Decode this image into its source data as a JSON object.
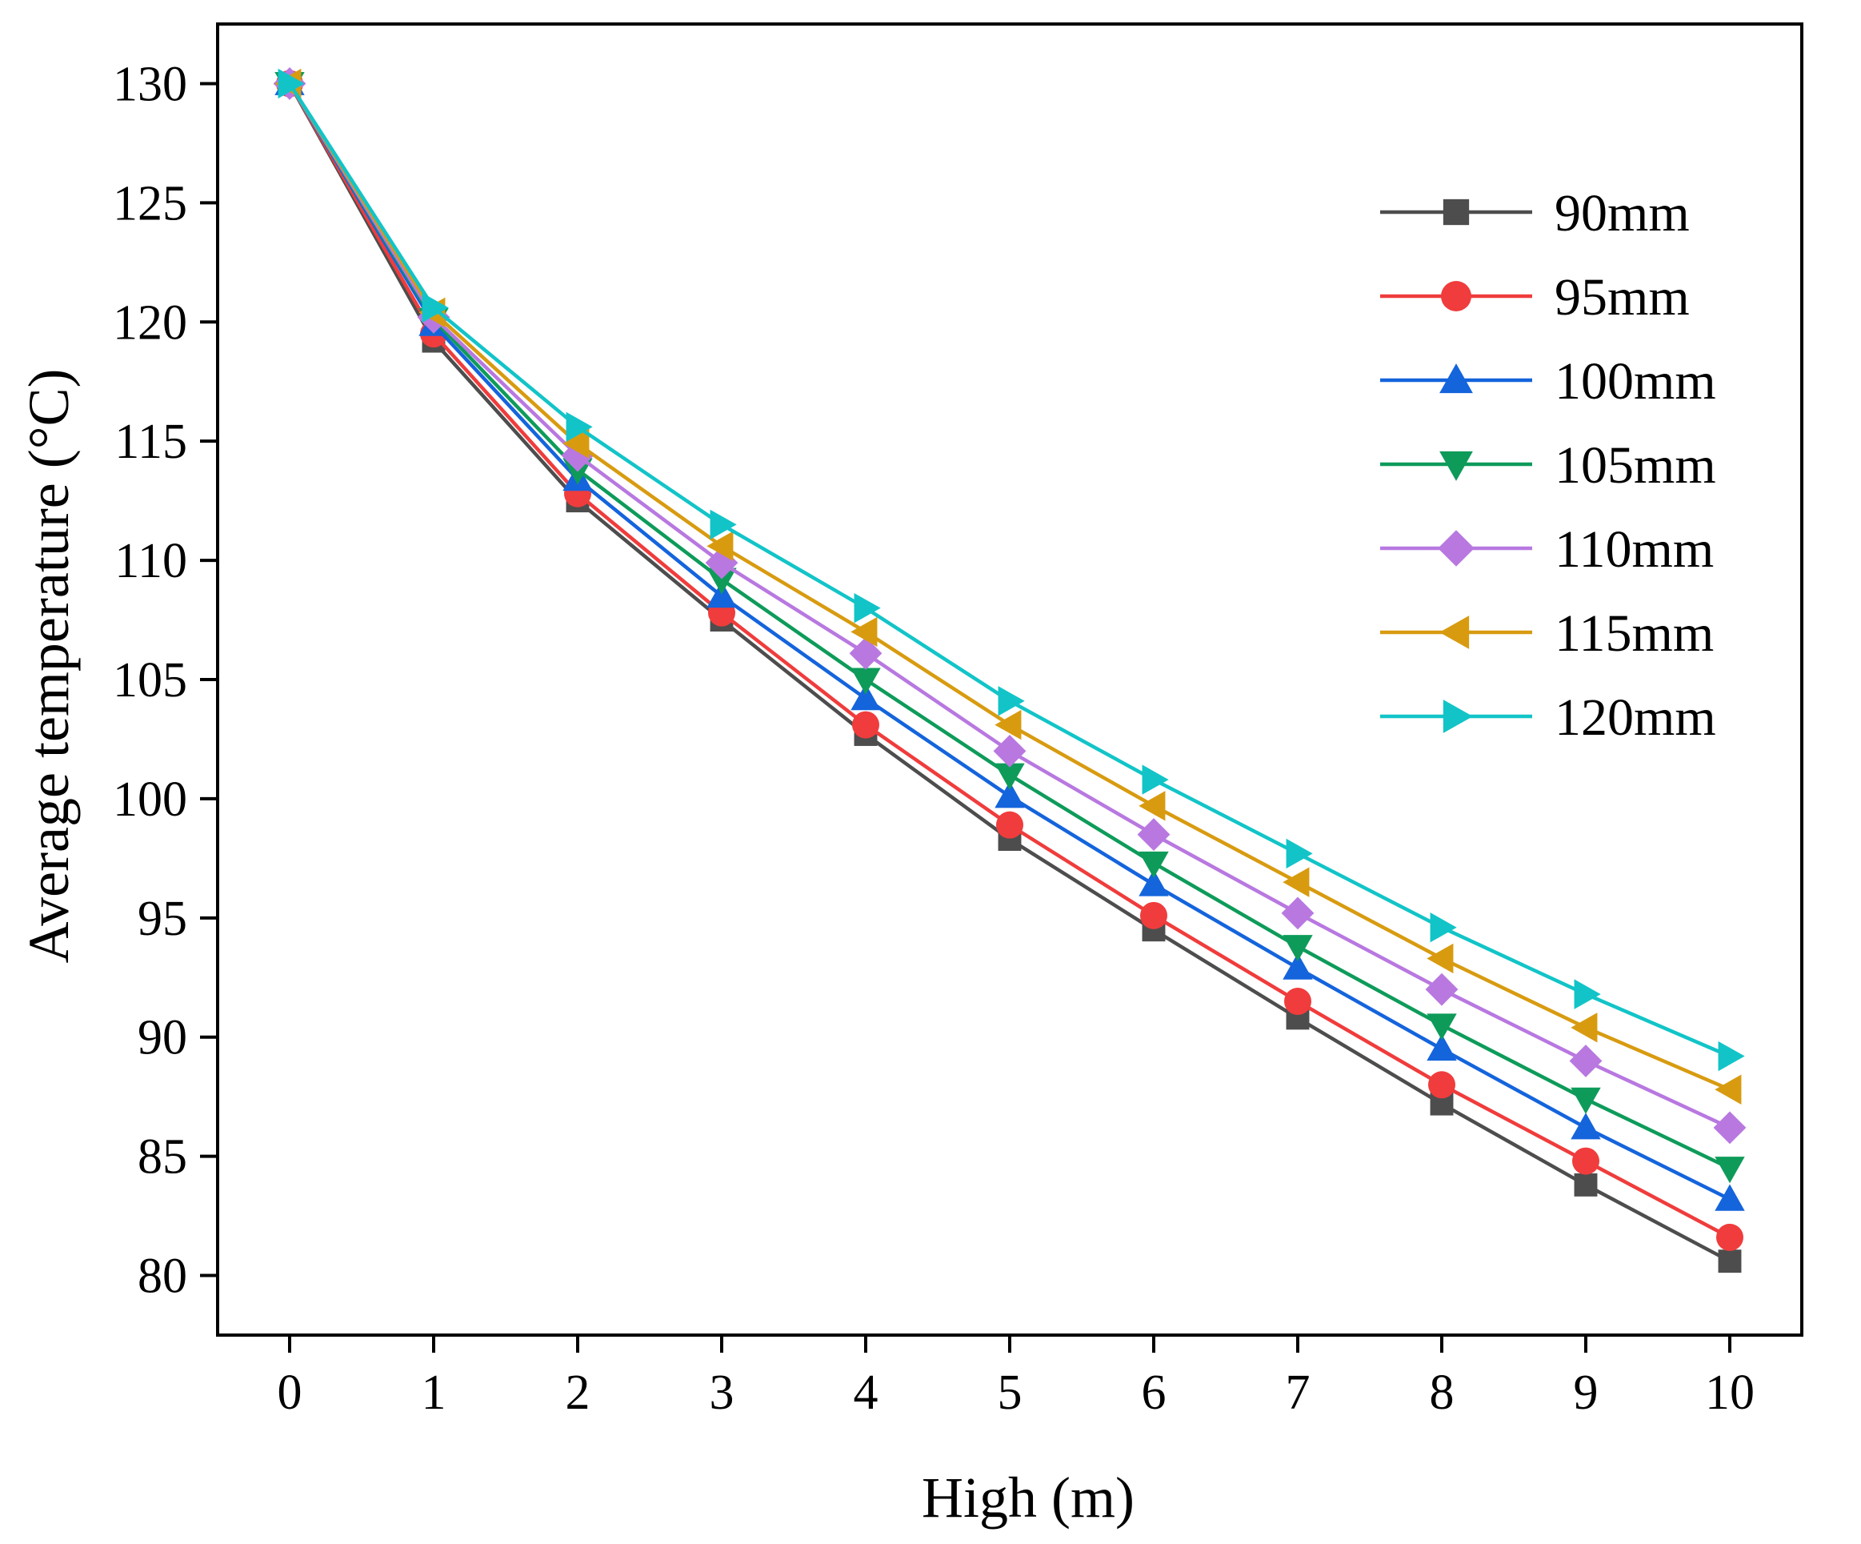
{
  "chart_data": {
    "type": "line",
    "title": "",
    "xlabel": "High (m)",
    "ylabel": "Average temperature (°C)",
    "xlim": [
      -0.5,
      10.5
    ],
    "ylim": [
      77.5,
      132.5
    ],
    "xticks": [
      0,
      1,
      2,
      3,
      4,
      5,
      6,
      7,
      8,
      9,
      10
    ],
    "yticks": [
      80,
      85,
      90,
      95,
      100,
      105,
      110,
      115,
      120,
      125,
      130
    ],
    "grid": false,
    "legend_position": "top-right",
    "x": [
      0,
      1,
      2,
      3,
      4,
      5,
      6,
      7,
      8,
      9,
      10
    ],
    "series": [
      {
        "name": "90mm",
        "color": "#4d4d4d",
        "marker": "square",
        "values": [
          130,
          119.2,
          112.5,
          107.5,
          102.7,
          98.3,
          94.5,
          90.8,
          87.2,
          83.8,
          80.6
        ]
      },
      {
        "name": "95mm",
        "color": "#f03c3c",
        "marker": "circle",
        "values": [
          130,
          119.5,
          112.8,
          107.8,
          103.1,
          98.9,
          95.1,
          91.5,
          88.0,
          84.8,
          81.6
        ]
      },
      {
        "name": "100mm",
        "color": "#1464dc",
        "marker": "triangle-up",
        "values": [
          130,
          119.9,
          113.4,
          108.5,
          104.2,
          100.1,
          96.4,
          92.9,
          89.5,
          86.2,
          83.2
        ]
      },
      {
        "name": "105mm",
        "color": "#0e9b5a",
        "marker": "triangle-down",
        "values": [
          130,
          120.1,
          113.8,
          109.2,
          105.0,
          101.0,
          97.3,
          93.8,
          90.5,
          87.4,
          84.5
        ]
      },
      {
        "name": "110mm",
        "color": "#b878e0",
        "marker": "diamond",
        "values": [
          130,
          120.2,
          114.4,
          109.9,
          106.1,
          102.0,
          98.5,
          95.2,
          92.0,
          89.0,
          86.2
        ]
      },
      {
        "name": "115mm",
        "color": "#d89b10",
        "marker": "triangle-left",
        "values": [
          130,
          120.4,
          114.9,
          110.6,
          107.0,
          103.1,
          99.7,
          96.5,
          93.3,
          90.4,
          87.8
        ]
      },
      {
        "name": "120mm",
        "color": "#12c4c8",
        "marker": "triangle-right",
        "values": [
          130,
          120.6,
          115.6,
          111.5,
          108.0,
          104.1,
          100.8,
          97.7,
          94.6,
          91.8,
          89.2
        ]
      }
    ]
  }
}
